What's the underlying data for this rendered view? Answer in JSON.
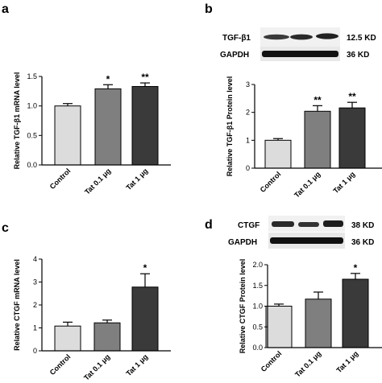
{
  "chart_data": [
    {
      "panel": "a",
      "type": "bar",
      "categories": [
        "Control",
        "Tat 0.1 μg",
        "Tat 1 μg"
      ],
      "values": [
        1.0,
        1.29,
        1.33
      ],
      "errors": [
        0.04,
        0.07,
        0.06
      ],
      "significance": [
        "",
        "*",
        "**"
      ],
      "colors": [
        "#dcdcdc",
        "#7f7f7f",
        "#3a3a3a"
      ],
      "ylabel": "Relative TGF-β1 mRNA level",
      "ylim": [
        0,
        1.5
      ],
      "yticks": [
        "0.0",
        "0.5",
        "1.0",
        "1.5"
      ]
    },
    {
      "panel": "b",
      "type": "bar",
      "categories": [
        "Control",
        "Tat 0.1 μg",
        "Tat 1 μg"
      ],
      "values": [
        1.0,
        2.04,
        2.16
      ],
      "errors": [
        0.06,
        0.2,
        0.2
      ],
      "significance": [
        "",
        "**",
        "**"
      ],
      "colors": [
        "#dcdcdc",
        "#7f7f7f",
        "#3a3a3a"
      ],
      "ylabel": "Relative TGF-β1 Protein level",
      "ylim": [
        0,
        3
      ],
      "yticks": [
        "0",
        "1",
        "2",
        "3"
      ],
      "blots": [
        {
          "protein": "TGF-β1",
          "size": "12.5 KD"
        },
        {
          "protein": "GAPDH",
          "size": "36 KD"
        }
      ]
    },
    {
      "panel": "c",
      "type": "bar",
      "categories": [
        "Control",
        "Tat 0.1 μg",
        "Tat 1 μg"
      ],
      "values": [
        1.08,
        1.22,
        2.78
      ],
      "errors": [
        0.17,
        0.12,
        0.58
      ],
      "significance": [
        "",
        "",
        "*"
      ],
      "colors": [
        "#dcdcdc",
        "#7f7f7f",
        "#3a3a3a"
      ],
      "ylabel": "Relative CTGF mRNA level",
      "ylim": [
        0,
        4
      ],
      "yticks": [
        "0",
        "1",
        "2",
        "3",
        "4"
      ]
    },
    {
      "panel": "d",
      "type": "bar",
      "categories": [
        "Control",
        "Tat 0.1 μg",
        "Tat 1 μg"
      ],
      "values": [
        1.0,
        1.17,
        1.65
      ],
      "errors": [
        0.05,
        0.17,
        0.14
      ],
      "significance": [
        "",
        "",
        "*"
      ],
      "colors": [
        "#dcdcdc",
        "#7f7f7f",
        "#3a3a3a"
      ],
      "ylabel": "Relative CTGF Protein level",
      "ylim": [
        0,
        2
      ],
      "yticks": [
        "0.0",
        "0.5",
        "1.0",
        "1.5",
        "2.0"
      ],
      "blots": [
        {
          "protein": "CTGF",
          "size": "38 KD"
        },
        {
          "protein": "GAPDH",
          "size": "36 KD"
        }
      ]
    }
  ]
}
